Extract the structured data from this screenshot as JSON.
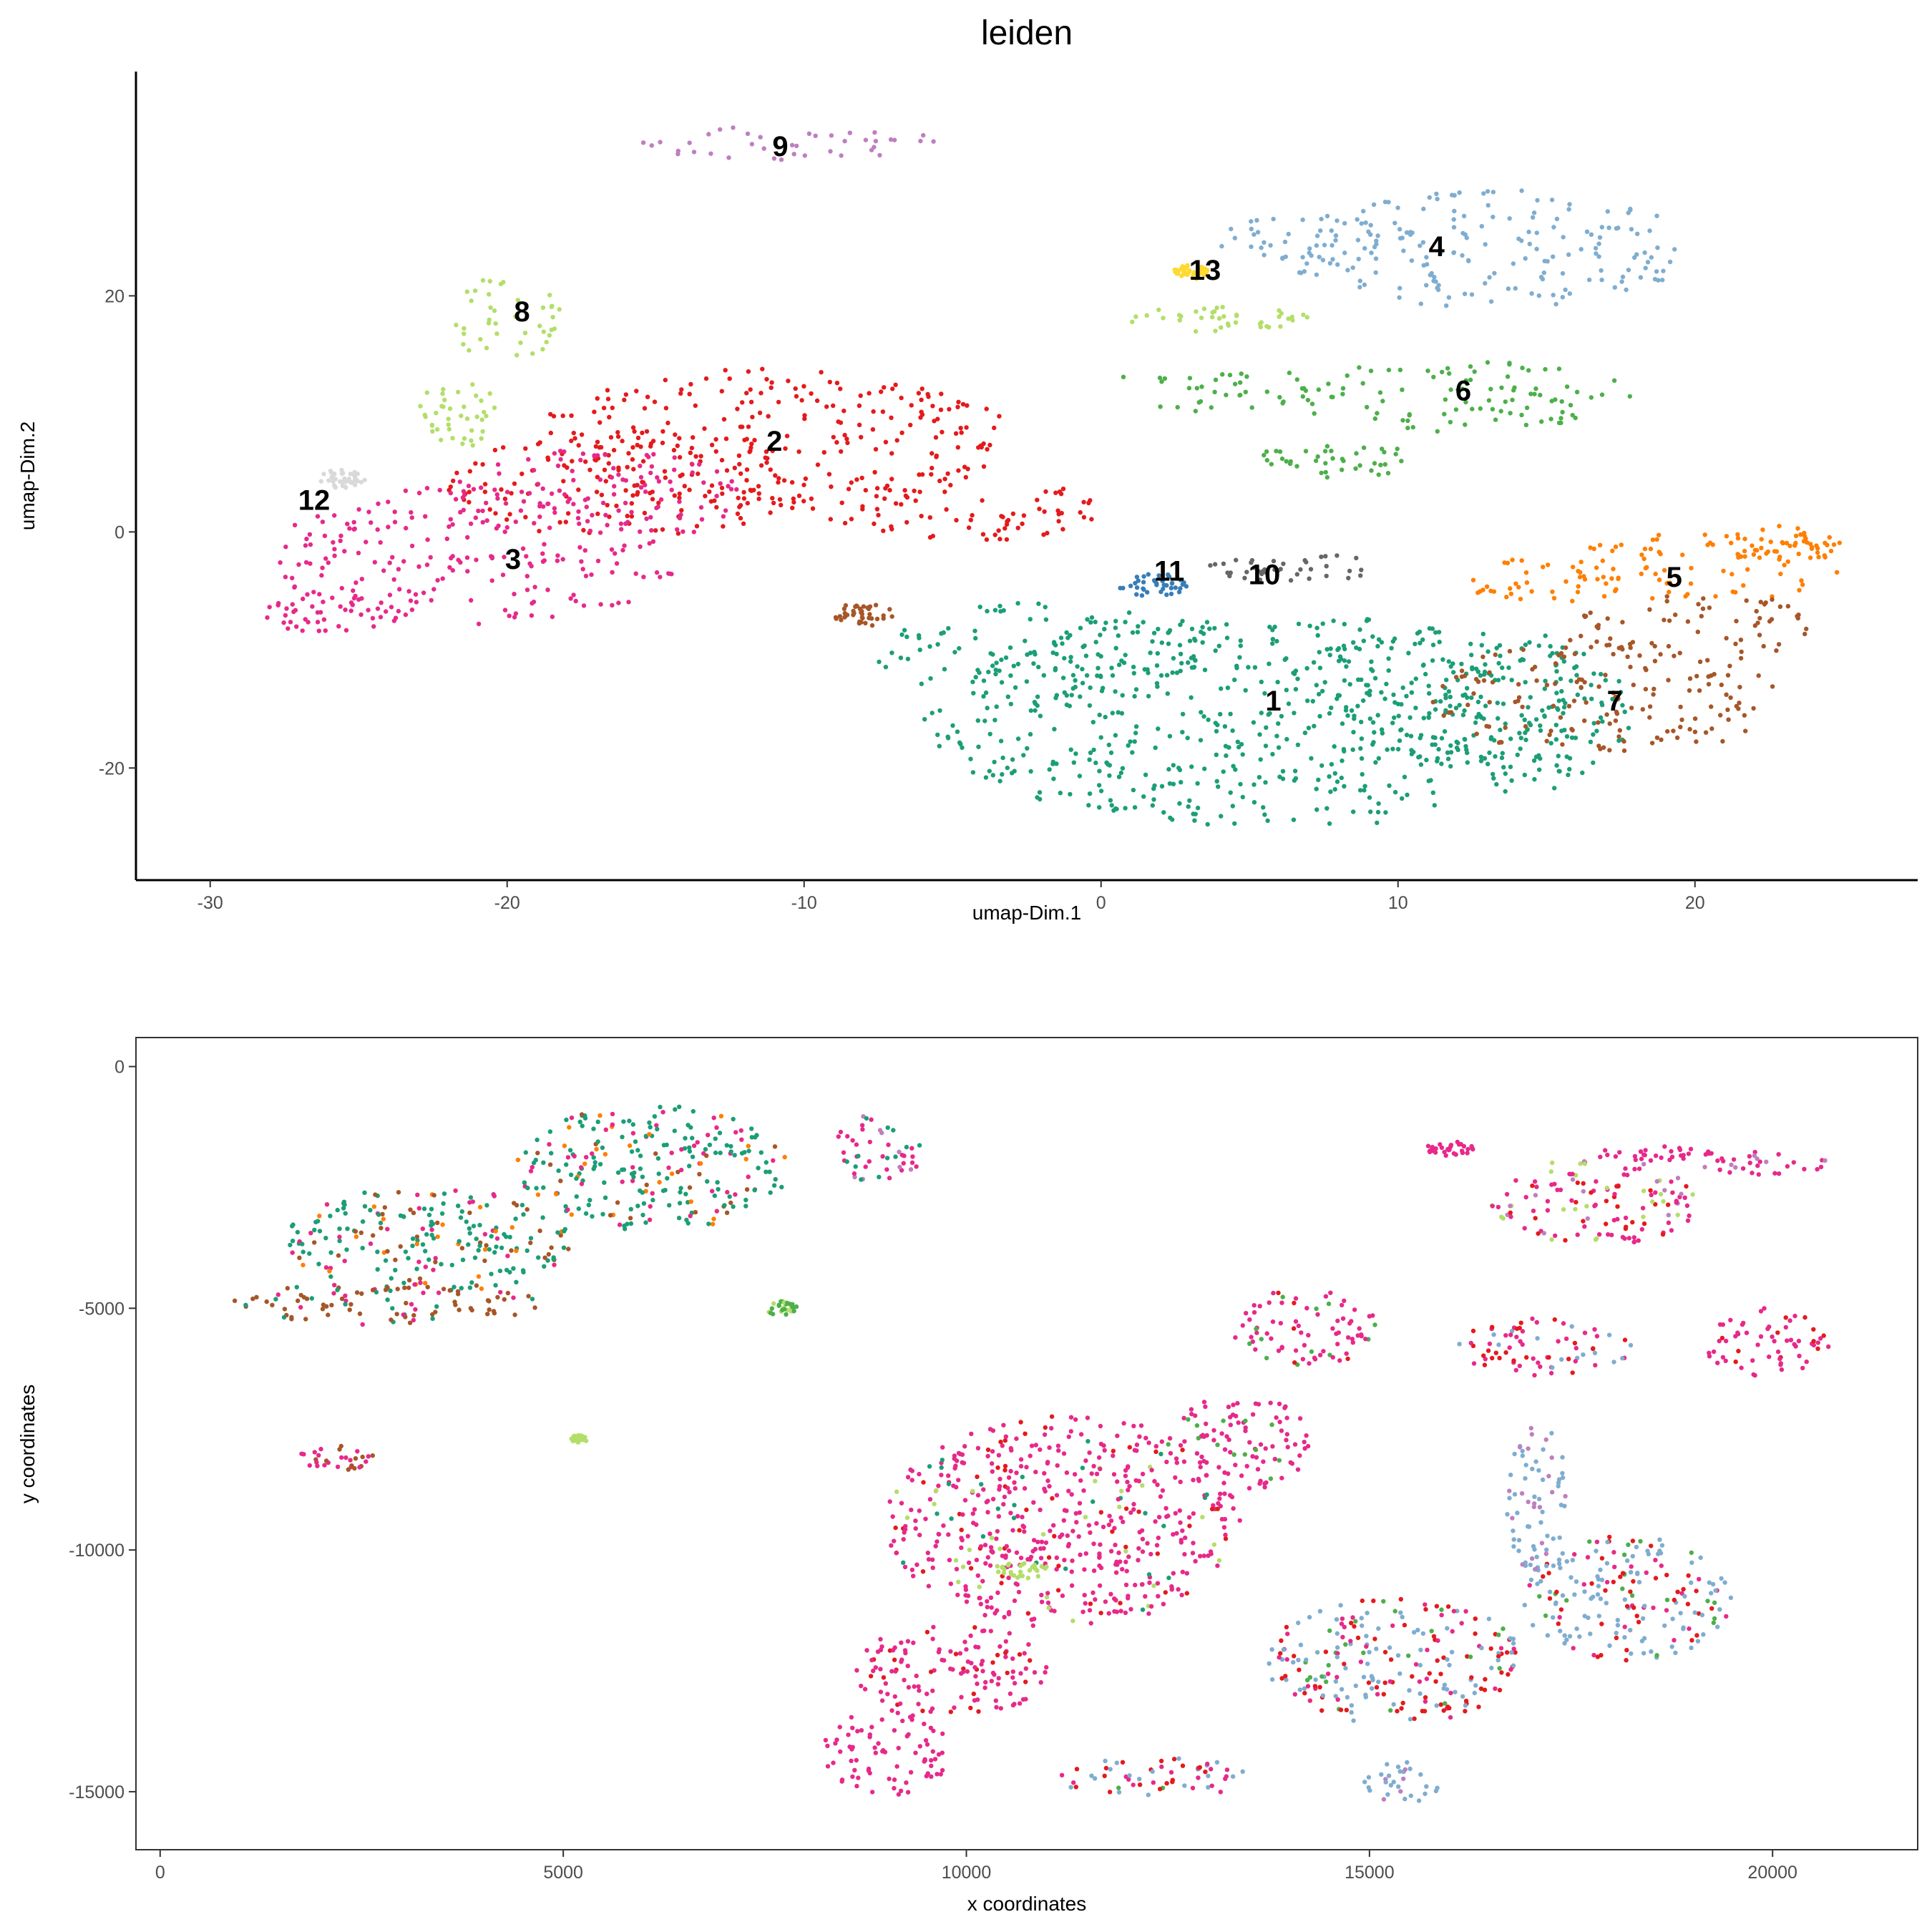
{
  "chart_data": [
    {
      "type": "scatter",
      "title": "leiden",
      "xlabel": "umap-Dim.1",
      "ylabel": "umap-Dim.2",
      "xlim": [
        -32.5,
        27.5
      ],
      "ylim": [
        -29.5,
        39
      ],
      "xticks": [
        -30,
        -20,
        -10,
        0,
        10,
        20
      ],
      "yticks": [
        -20,
        0,
        20
      ],
      "grid": false,
      "legend": "none",
      "cluster_labels": [
        {
          "label": "1",
          "x": 5.8,
          "y": -14.5
        },
        {
          "label": "2",
          "x": -11.0,
          "y": 7.5
        },
        {
          "label": "3",
          "x": -19.8,
          "y": -2.5
        },
        {
          "label": "4",
          "x": 11.3,
          "y": 24.0
        },
        {
          "label": "5",
          "x": 19.3,
          "y": -4.0
        },
        {
          "label": "6",
          "x": 12.2,
          "y": 11.8
        },
        {
          "label": "7",
          "x": 17.3,
          "y": -14.5
        },
        {
          "label": "8",
          "x": -19.5,
          "y": 18.5
        },
        {
          "label": "9",
          "x": -10.8,
          "y": 32.5
        },
        {
          "label": "10",
          "x": 5.5,
          "y": -3.8
        },
        {
          "label": "11",
          "x": 2.3,
          "y": -3.5
        },
        {
          "label": "12",
          "x": -26.5,
          "y": 2.5
        },
        {
          "label": "13",
          "x": 3.5,
          "y": 22.0
        }
      ],
      "series": [
        {
          "cluster": "1",
          "color": "#1b9e77",
          "regions": [
            {
              "cx": 6.0,
              "cy": -16.0,
              "rx": 12.0,
              "ry": 9.0
            },
            {
              "cx": -2.0,
              "cy": -10.0,
              "rx": 6.0,
              "ry": 4.0
            },
            {
              "cx": 12.0,
              "cy": -14.0,
              "rx": 6.0,
              "ry": 6.0
            }
          ]
        },
        {
          "cluster": "2",
          "color": "#e41a1c",
          "regions": [
            {
              "cx": -11.0,
              "cy": 8.0,
              "rx": 8.0,
              "ry": 6.0
            },
            {
              "cx": -16.0,
              "cy": 4.0,
              "rx": 6.0,
              "ry": 4.5
            },
            {
              "cx": -5.0,
              "cy": 2.0,
              "rx": 5.0,
              "ry": 3.0
            }
          ]
        },
        {
          "cluster": "3",
          "color": "#e7298a",
          "regions": [
            {
              "cx": -21.0,
              "cy": -2.0,
              "rx": 7.0,
              "ry": 6.0
            },
            {
              "cx": -17.0,
              "cy": 3.0,
              "rx": 5.0,
              "ry": 4.0
            },
            {
              "cx": -26.0,
              "cy": -7.0,
              "rx": 2.5,
              "ry": 1.5
            }
          ]
        },
        {
          "cluster": "4",
          "color": "#7fadd0",
          "regions": [
            {
              "cx": 13.0,
              "cy": 24.0,
              "rx": 7.0,
              "ry": 5.0
            },
            {
              "cx": 7.0,
              "cy": 24.5,
              "rx": 3.0,
              "ry": 2.5
            }
          ]
        },
        {
          "cluster": "5",
          "color": "#ff7f00",
          "regions": [
            {
              "cx": 20.0,
              "cy": -3.0,
              "rx": 5.0,
              "ry": 3.0
            },
            {
              "cx": 23.0,
              "cy": -1.0,
              "rx": 2.0,
              "ry": 1.5
            },
            {
              "cx": 15.0,
              "cy": -4.0,
              "rx": 3.0,
              "ry": 2.0
            }
          ]
        },
        {
          "cluster": "6",
          "color": "#4daf4a",
          "regions": [
            {
              "cx": 12.0,
              "cy": 11.5,
              "rx": 6.0,
              "ry": 3.0
            },
            {
              "cx": 4.0,
              "cy": 12.0,
              "rx": 4.0,
              "ry": 2.0
            },
            {
              "cx": 8.0,
              "cy": 6.0,
              "rx": 3.0,
              "ry": 1.5
            }
          ]
        },
        {
          "cluster": "7",
          "color": "#a65628",
          "regions": [
            {
              "cx": 17.0,
              "cy": -14.0,
              "rx": 6.0,
              "ry": 5.0
            },
            {
              "cx": 20.0,
              "cy": -8.0,
              "rx": 4.0,
              "ry": 3.0
            },
            {
              "cx": -8.0,
              "cy": -7.0,
              "rx": 1.0,
              "ry": 1.0
            }
          ]
        },
        {
          "cluster": "8",
          "color": "#b3de69",
          "regions": [
            {
              "cx": -20.0,
              "cy": 18.0,
              "rx": 1.8,
              "ry": 4.0
            },
            {
              "cx": -21.5,
              "cy": 10.0,
              "rx": 1.5,
              "ry": 3.0
            },
            {
              "cx": 4.0,
              "cy": 18.0,
              "rx": 3.0,
              "ry": 1.2
            }
          ]
        },
        {
          "cluster": "9",
          "color": "#bf7fbf",
          "regions": [
            {
              "cx": -10.5,
              "cy": 33.0,
              "rx": 5.0,
              "ry": 1.5
            }
          ]
        },
        {
          "cluster": "10",
          "color": "#666666",
          "regions": [
            {
              "cx": 6.5,
              "cy": -3.0,
              "rx": 3.0,
              "ry": 1.2
            }
          ]
        },
        {
          "cluster": "11",
          "color": "#377eb8",
          "regions": [
            {
              "cx": 1.8,
              "cy": -4.5,
              "rx": 1.2,
              "ry": 1.0
            }
          ]
        },
        {
          "cluster": "12",
          "color": "#d9d9d9",
          "regions": [
            {
              "cx": -25.5,
              "cy": 4.5,
              "rx": 0.8,
              "ry": 0.8
            }
          ]
        },
        {
          "cluster": "13",
          "color": "#ffd92f",
          "regions": [
            {
              "cx": 3.0,
              "cy": 22.0,
              "rx": 0.6,
              "ry": 0.6
            }
          ]
        }
      ]
    },
    {
      "type": "scatter",
      "title": "",
      "xlabel": "x coordinates",
      "ylabel": "y coordinates",
      "xlim": [
        -300,
        21800
      ],
      "ylim": [
        -16200,
        600
      ],
      "xticks": [
        0,
        5000,
        10000,
        15000,
        20000
      ],
      "yticks": [
        0,
        -5000,
        -10000,
        -15000
      ],
      "grid": false,
      "legend": "none",
      "tissue_regions": [
        {
          "cx": 3300,
          "cy": -3600,
          "rx": 1800,
          "ry": 1100,
          "colors": [
            "#1b9e77",
            "#e7298a",
            "#ff7f00",
            "#a65628"
          ],
          "weights": [
            0.55,
            0.15,
            0.15,
            0.15
          ]
        },
        {
          "cx": 6100,
          "cy": -2100,
          "rx": 1700,
          "ry": 1300,
          "colors": [
            "#1b9e77",
            "#e7298a",
            "#ff7f00",
            "#a65628"
          ],
          "weights": [
            0.55,
            0.2,
            0.15,
            0.1
          ]
        },
        {
          "cx": 2800,
          "cy": -4900,
          "rx": 1900,
          "ry": 450,
          "colors": [
            "#a65628",
            "#1b9e77",
            "#e7298a"
          ],
          "weights": [
            0.6,
            0.25,
            0.15
          ]
        },
        {
          "cx": 8900,
          "cy": -1700,
          "rx": 600,
          "ry": 700,
          "colors": [
            "#e7298a",
            "#1b9e77",
            "#bf7fbf"
          ],
          "weights": [
            0.5,
            0.3,
            0.2
          ]
        },
        {
          "cx": 14200,
          "cy": -5400,
          "rx": 900,
          "ry": 800,
          "colors": [
            "#e7298a",
            "#4daf4a",
            "#e41a1c"
          ],
          "weights": [
            0.7,
            0.15,
            0.15
          ]
        },
        {
          "cx": 17800,
          "cy": -2800,
          "rx": 1300,
          "ry": 900,
          "colors": [
            "#e7298a",
            "#b3de69",
            "#bf7fbf",
            "#e41a1c"
          ],
          "weights": [
            0.5,
            0.2,
            0.15,
            0.15
          ]
        },
        {
          "cx": 17200,
          "cy": -5800,
          "rx": 1100,
          "ry": 600,
          "colors": [
            "#e7298a",
            "#e41a1c",
            "#7fadd0"
          ],
          "weights": [
            0.5,
            0.3,
            0.2
          ]
        },
        {
          "cx": 19900,
          "cy": -5700,
          "rx": 800,
          "ry": 700,
          "colors": [
            "#e7298a",
            "#e41a1c"
          ],
          "weights": [
            0.85,
            0.15
          ]
        },
        {
          "cx": 18200,
          "cy": -11000,
          "rx": 1300,
          "ry": 1300,
          "colors": [
            "#7fadd0",
            "#e41a1c",
            "#e7298a",
            "#4daf4a"
          ],
          "weights": [
            0.45,
            0.3,
            0.15,
            0.1
          ]
        },
        {
          "cx": 17100,
          "cy": -9000,
          "rx": 400,
          "ry": 1600,
          "colors": [
            "#7fadd0",
            "#bf7fbf"
          ],
          "weights": [
            0.7,
            0.3
          ]
        },
        {
          "cx": 15300,
          "cy": -12300,
          "rx": 1600,
          "ry": 1300,
          "colors": [
            "#7fadd0",
            "#e41a1c",
            "#e7298a",
            "#4daf4a"
          ],
          "weights": [
            0.4,
            0.3,
            0.2,
            0.1
          ]
        },
        {
          "cx": 15400,
          "cy": -14800,
          "rx": 500,
          "ry": 500,
          "colors": [
            "#7fadd0",
            "#bf7fbf"
          ],
          "weights": [
            0.8,
            0.2
          ]
        },
        {
          "cx": 12400,
          "cy": -14700,
          "rx": 1300,
          "ry": 400,
          "colors": [
            "#7fadd0",
            "#e41a1c",
            "#e7298a",
            "#4daf4a"
          ],
          "weights": [
            0.35,
            0.3,
            0.25,
            0.1
          ]
        },
        {
          "cx": 9000,
          "cy": -14200,
          "rx": 800,
          "ry": 900,
          "colors": [
            "#e7298a"
          ],
          "weights": [
            1.0
          ]
        },
        {
          "cx": 11200,
          "cy": -9400,
          "rx": 2200,
          "ry": 2200,
          "colors": [
            "#e7298a",
            "#e41a1c",
            "#b3de69",
            "#1b9e77"
          ],
          "weights": [
            0.8,
            0.1,
            0.05,
            0.05
          ]
        },
        {
          "cx": 9800,
          "cy": -12500,
          "rx": 1200,
          "ry": 1000,
          "colors": [
            "#e7298a",
            "#e41a1c"
          ],
          "weights": [
            0.85,
            0.15
          ]
        },
        {
          "cx": 13400,
          "cy": -7800,
          "rx": 900,
          "ry": 1000,
          "colors": [
            "#e7298a",
            "#4daf4a"
          ],
          "weights": [
            0.85,
            0.15
          ]
        },
        {
          "cx": 19900,
          "cy": -2000,
          "rx": 800,
          "ry": 250,
          "colors": [
            "#e7298a",
            "#bf7fbf"
          ],
          "weights": [
            0.8,
            0.2
          ]
        },
        {
          "cx": 16000,
          "cy": -1700,
          "rx": 300,
          "ry": 150,
          "colors": [
            "#e7298a"
          ],
          "weights": [
            1.0
          ]
        },
        {
          "cx": 18500,
          "cy": -1800,
          "rx": 800,
          "ry": 150,
          "colors": [
            "#e7298a"
          ],
          "weights": [
            1.0
          ]
        },
        {
          "cx": 2200,
          "cy": -8100,
          "rx": 500,
          "ry": 250,
          "colors": [
            "#e7298a",
            "#a65628"
          ],
          "weights": [
            0.7,
            0.3
          ]
        },
        {
          "cx": 7700,
          "cy": -5000,
          "rx": 200,
          "ry": 150,
          "colors": [
            "#4daf4a",
            "#b3de69"
          ],
          "weights": [
            0.6,
            0.4
          ]
        },
        {
          "cx": 5200,
          "cy": -7700,
          "rx": 100,
          "ry": 80,
          "colors": [
            "#b3de69"
          ],
          "weights": [
            1.0
          ]
        },
        {
          "cx": 10700,
          "cy": -10400,
          "rx": 350,
          "ry": 200,
          "colors": [
            "#b3de69"
          ],
          "weights": [
            1.0
          ]
        }
      ]
    }
  ]
}
